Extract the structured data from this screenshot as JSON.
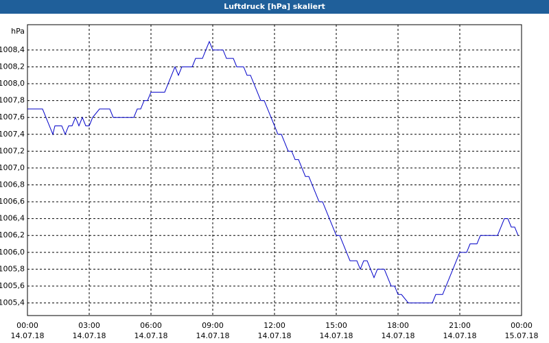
{
  "chart_data": {
    "type": "line",
    "title": "Luftdruck [hPa] skaliert",
    "y_unit": "hPa",
    "x": [
      0,
      44,
      74,
      80,
      100,
      110,
      120,
      130,
      140,
      150,
      160,
      170,
      180,
      190,
      210,
      240,
      250,
      310,
      320,
      330,
      340,
      350,
      360,
      400,
      410,
      420,
      430,
      440,
      450,
      480,
      490,
      510,
      520,
      530,
      540,
      570,
      580,
      600,
      610,
      630,
      640,
      650,
      660,
      670,
      680,
      690,
      700,
      710,
      720,
      730,
      740,
      750,
      760,
      770,
      780,
      790,
      800,
      810,
      820,
      830,
      840,
      850,
      860,
      870,
      880,
      890,
      900,
      910,
      920,
      930,
      940,
      960,
      970,
      980,
      990,
      1000,
      1010,
      1020,
      1040,
      1050,
      1060,
      1070,
      1080,
      1090,
      1110,
      1180,
      1190,
      1210,
      1220,
      1230,
      1240,
      1250,
      1260,
      1280,
      1290,
      1310,
      1320,
      1370,
      1380,
      1390,
      1400,
      1410,
      1420,
      1430
    ],
    "values": [
      1007.7,
      1007.7,
      1007.4,
      1007.5,
      1007.5,
      1007.4,
      1007.5,
      1007.5,
      1007.6,
      1007.5,
      1007.6,
      1007.5,
      1007.5,
      1007.6,
      1007.7,
      1007.7,
      1007.6,
      1007.6,
      1007.7,
      1007.7,
      1007.8,
      1007.8,
      1007.9,
      1007.9,
      1008.0,
      1008.1,
      1008.2,
      1008.1,
      1008.2,
      1008.2,
      1008.3,
      1008.3,
      1008.4,
      1008.5,
      1008.4,
      1008.4,
      1008.3,
      1008.3,
      1008.2,
      1008.2,
      1008.1,
      1008.1,
      1008.0,
      1007.9,
      1007.8,
      1007.8,
      1007.7,
      1007.6,
      1007.5,
      1007.4,
      1007.4,
      1007.3,
      1007.2,
      1007.2,
      1007.1,
      1007.1,
      1007.0,
      1006.9,
      1006.9,
      1006.8,
      1006.7,
      1006.6,
      1006.6,
      1006.5,
      1006.4,
      1006.3,
      1006.2,
      1006.2,
      1006.1,
      1006.0,
      1005.9,
      1005.9,
      1005.8,
      1005.9,
      1005.9,
      1005.8,
      1005.7,
      1005.8,
      1005.8,
      1005.7,
      1005.6,
      1005.6,
      1005.5,
      1005.5,
      1005.4,
      1005.4,
      1005.5,
      1005.5,
      1005.6,
      1005.7,
      1005.8,
      1005.9,
      1006.0,
      1006.0,
      1006.1,
      1006.1,
      1006.2,
      1006.2,
      1006.3,
      1006.4,
      1006.4,
      1006.3,
      1006.3,
      1006.2
    ],
    "color": "#0000c8",
    "xlim": [
      0,
      1440
    ],
    "xticks": [
      {
        "value": 0,
        "label": "00:00"
      },
      {
        "value": 180,
        "label": "03:00"
      },
      {
        "value": 360,
        "label": "06:00"
      },
      {
        "value": 540,
        "label": "09:00"
      },
      {
        "value": 720,
        "label": "12:00"
      },
      {
        "value": 900,
        "label": "15:00"
      },
      {
        "value": 1080,
        "label": "18:00"
      },
      {
        "value": 1260,
        "label": "21:00"
      },
      {
        "value": 1440,
        "label": "00:00"
      }
    ],
    "xtick_dates": [
      "14.07.18",
      "14.07.18",
      "14.07.18",
      "14.07.18",
      "14.07.18",
      "14.07.18",
      "14.07.18",
      "14.07.18",
      "15.07.18"
    ],
    "ylim": [
      1005.25,
      1008.7
    ],
    "yticks": [
      {
        "value": 1005.4,
        "label": "1005,4"
      },
      {
        "value": 1005.6,
        "label": "1005,6"
      },
      {
        "value": 1005.8,
        "label": "1005,8"
      },
      {
        "value": 1006.0,
        "label": "1006,0"
      },
      {
        "value": 1006.2,
        "label": "1006,2"
      },
      {
        "value": 1006.4,
        "label": "1006,4"
      },
      {
        "value": 1006.6,
        "label": "1006,6"
      },
      {
        "value": 1006.8,
        "label": "1006,8"
      },
      {
        "value": 1007.0,
        "label": "1007,0"
      },
      {
        "value": 1007.2,
        "label": "1007,2"
      },
      {
        "value": 1007.4,
        "label": "1007,4"
      },
      {
        "value": 1007.6,
        "label": "1007,6"
      },
      {
        "value": 1007.8,
        "label": "1007,8"
      },
      {
        "value": 1008.0,
        "label": "1008,0"
      },
      {
        "value": 1008.2,
        "label": "1008,2"
      },
      {
        "value": 1008.4,
        "label": "1008,4"
      }
    ],
    "grid": true
  }
}
